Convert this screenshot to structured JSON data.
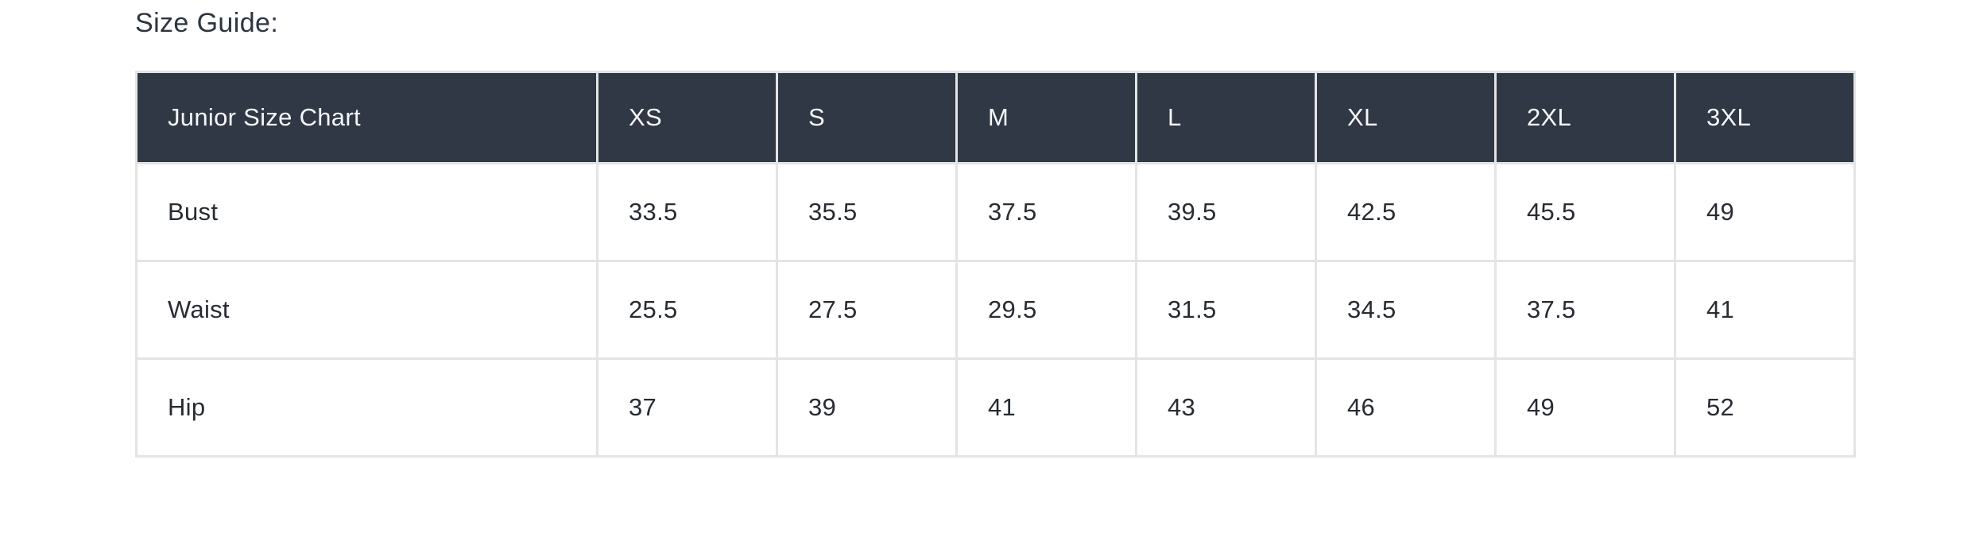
{
  "page": {
    "title": "Size Guide:"
  },
  "size_table": {
    "header": {
      "label": "Junior Size Chart",
      "sizes": [
        "XS",
        "S",
        "M",
        "L",
        "XL",
        "2XL",
        "3XL"
      ]
    },
    "rows": [
      {
        "label": "Bust",
        "values": [
          "33.5",
          "35.5",
          "37.5",
          "39.5",
          "42.5",
          "45.5",
          "49"
        ]
      },
      {
        "label": "Waist",
        "values": [
          "25.5",
          "27.5",
          "29.5",
          "31.5",
          "34.5",
          "37.5",
          "41"
        ]
      },
      {
        "label": "Hip",
        "values": [
          "37",
          "39",
          "41",
          "43",
          "46",
          "49",
          "52"
        ]
      }
    ],
    "colors": {
      "header_bg": "#2f3844",
      "header_text": "#f5f6f8",
      "body_text": "#272c33",
      "border": "#e4e4e4"
    }
  }
}
